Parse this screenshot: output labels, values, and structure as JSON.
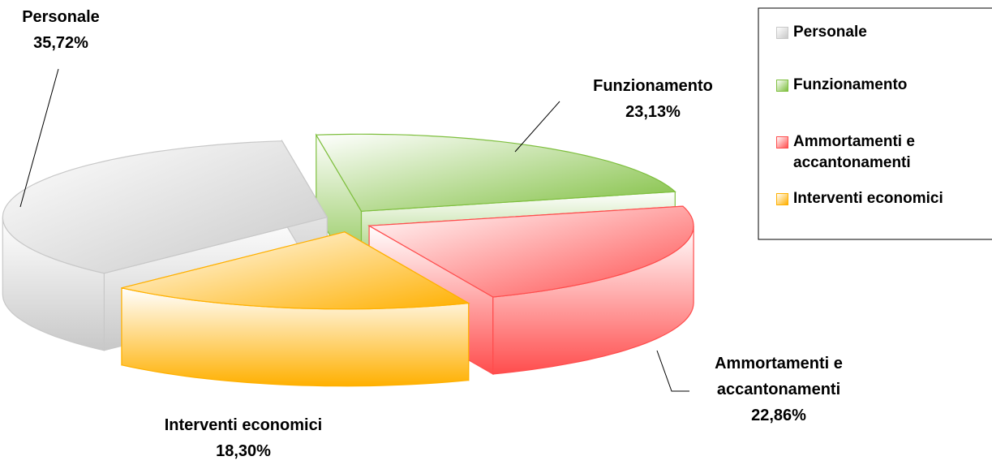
{
  "chart_data": {
    "type": "pie",
    "categories": [
      "Personale",
      "Funzionamento",
      "Ammortamenti e accantonamenti",
      "Interventi economici"
    ],
    "values": [
      35.72,
      23.13,
      22.86,
      18.3
    ],
    "value_labels": [
      "35,72%",
      "23,13%",
      "22,86%",
      "18,30%"
    ],
    "colors": [
      "#c8c8c8",
      "#7fbf3f",
      "#ff4d4d",
      "#ffb000"
    ],
    "legend": "top-right"
  }
}
